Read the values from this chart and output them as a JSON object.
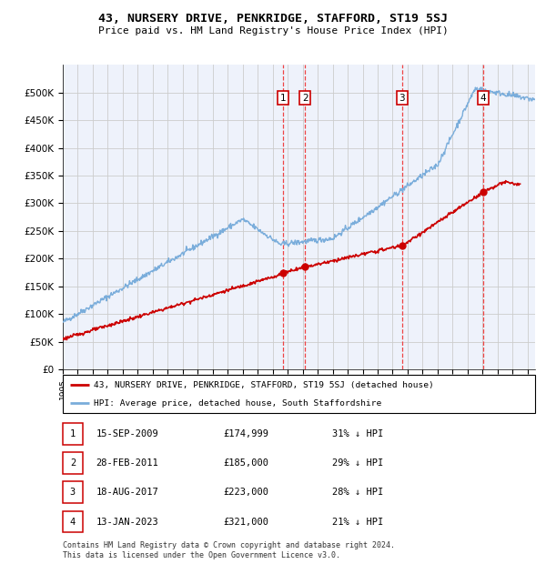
{
  "title": "43, NURSERY DRIVE, PENKRIDGE, STAFFORD, ST19 5SJ",
  "subtitle": "Price paid vs. HM Land Registry's House Price Index (HPI)",
  "ylim": [
    0,
    550000
  ],
  "yticks": [
    0,
    50000,
    100000,
    150000,
    200000,
    250000,
    300000,
    350000,
    400000,
    450000,
    500000
  ],
  "ytick_labels": [
    "£0",
    "£50K",
    "£100K",
    "£150K",
    "£200K",
    "£250K",
    "£300K",
    "£350K",
    "£400K",
    "£450K",
    "£500K"
  ],
  "hpi_color": "#7aaddb",
  "price_color": "#cc0000",
  "vline_color": "#ee4444",
  "purchases": [
    {
      "num": 1,
      "date_x": 2009.71,
      "price": 174999,
      "text": "15-SEP-2009",
      "price_str": "£174,999",
      "hpi_pct": "31% ↓ HPI"
    },
    {
      "num": 2,
      "date_x": 2011.16,
      "price": 185000,
      "text": "28-FEB-2011",
      "price_str": "£185,000",
      "hpi_pct": "29% ↓ HPI"
    },
    {
      "num": 3,
      "date_x": 2017.63,
      "price": 223000,
      "text": "18-AUG-2017",
      "price_str": "£223,000",
      "hpi_pct": "28% ↓ HPI"
    },
    {
      "num": 4,
      "date_x": 2023.04,
      "price": 321000,
      "text": "13-JAN-2023",
      "price_str": "£321,000",
      "hpi_pct": "21% ↓ HPI"
    }
  ],
  "legend_price_label": "43, NURSERY DRIVE, PENKRIDGE, STAFFORD, ST19 5SJ (detached house)",
  "legend_hpi_label": "HPI: Average price, detached house, South Staffordshire",
  "footer": "Contains HM Land Registry data © Crown copyright and database right 2024.\nThis data is licensed under the Open Government Licence v3.0.",
  "background_color": "#eef2fb",
  "grid_color": "#cccccc",
  "xmin": 1995,
  "xmax": 2026.5
}
